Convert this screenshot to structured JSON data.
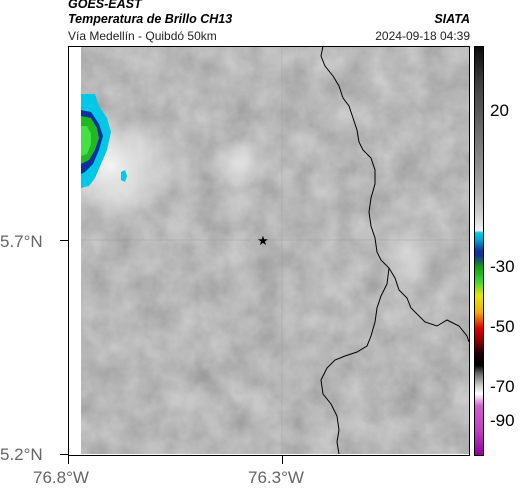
{
  "header": {
    "satellite": "GOES-EAST",
    "product": "Temperatura de Brillo CH13",
    "region": "Vía Medellín - Quibdó 50km",
    "org": "SIATA",
    "datetime": "2024-09-18 04:39"
  },
  "map": {
    "lat_ticks": [
      "5.7°N",
      "5.2°N"
    ],
    "lon_ticks": [
      "76.8°W",
      "76.3°W"
    ],
    "marker": "star-marker"
  },
  "colorbar": {
    "ticks": [
      "20",
      "-30",
      "-50",
      "-70",
      "-90"
    ],
    "colors": {
      "cold_cyan": "#00c8e6",
      "blue": "#1020a0",
      "green": "#10c010",
      "yellow": "#e8e800",
      "red": "#e00000",
      "black": "#000000",
      "magenta": "#c000c0"
    }
  }
}
